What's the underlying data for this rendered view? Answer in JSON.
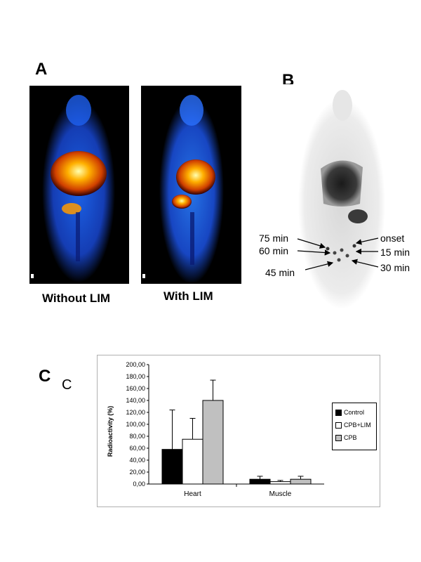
{
  "panel_a": {
    "letter": "A",
    "left_caption": "Without LIM",
    "right_caption": "With LIM"
  },
  "panel_b": {
    "letter": "B",
    "labels_left": [
      "75 min",
      "60 min",
      "45 min"
    ],
    "labels_right": [
      "onset",
      "15 min",
      "30 min"
    ]
  },
  "panel_c": {
    "letter": "C",
    "sub_letter": "C"
  },
  "colors": {
    "control": "#000000",
    "cpb_lim": "#ffffff",
    "cpb": "#c0c0c0"
  },
  "chart_data": {
    "type": "bar",
    "categories": [
      "Heart",
      "Muscle"
    ],
    "series": [
      {
        "name": "Control",
        "values": [
          58,
          8
        ],
        "errors": [
          66,
          5
        ]
      },
      {
        "name": "CPB+LIM",
        "values": [
          75,
          4
        ],
        "errors": [
          35,
          2
        ]
      },
      {
        "name": "CPB",
        "values": [
          140,
          8
        ],
        "errors": [
          34,
          5
        ]
      }
    ],
    "ylabel": "Radioactivity (%)",
    "xlabel": "",
    "ylim": [
      0,
      200
    ],
    "yticks": [
      "0,00",
      "20,00",
      "40,00",
      "60,00",
      "80,00",
      "100,00",
      "120,00",
      "140,00",
      "160,00",
      "180,00",
      "200,00"
    ],
    "legend_position": "right"
  }
}
